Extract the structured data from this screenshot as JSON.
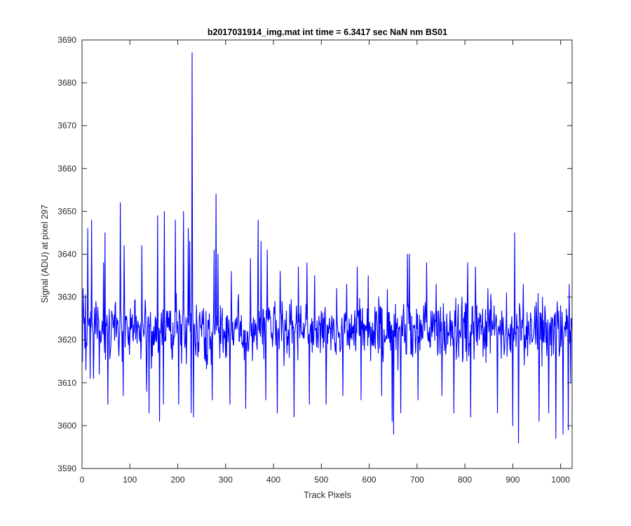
{
  "chart_data": {
    "type": "line",
    "title": "b2017031914_img.mat int time = 6.3417 sec  NaN nm BS01",
    "xlabel": "Track Pixels",
    "ylabel": "Signal (ADU) at pixel 297",
    "xlim": [
      0,
      1024
    ],
    "ylim": [
      3590,
      3690
    ],
    "xticks": [
      0,
      100,
      200,
      300,
      400,
      500,
      600,
      700,
      800,
      900,
      1000
    ],
    "yticks": [
      3590,
      3600,
      3610,
      3620,
      3630,
      3640,
      3650,
      3660,
      3670,
      3680,
      3690
    ],
    "grid": false,
    "legend": "none",
    "series_color": "#0000ff",
    "n_points": 1024,
    "baseline": 3622,
    "noise_amplitude": 7.5,
    "series": [
      {
        "x_start": 1,
        "x_step": 1,
        "anchor_points": [
          {
            "x": 2,
            "y": 3632
          },
          {
            "x": 8,
            "y": 3613
          },
          {
            "x": 12,
            "y": 3646
          },
          {
            "x": 17,
            "y": 3611
          },
          {
            "x": 20,
            "y": 3648
          },
          {
            "x": 24,
            "y": 3611
          },
          {
            "x": 36,
            "y": 3612
          },
          {
            "x": 45,
            "y": 3638
          },
          {
            "x": 48,
            "y": 3645
          },
          {
            "x": 54,
            "y": 3605
          },
          {
            "x": 80,
            "y": 3652
          },
          {
            "x": 86,
            "y": 3607
          },
          {
            "x": 88,
            "y": 3642
          },
          {
            "x": 125,
            "y": 3642
          },
          {
            "x": 135,
            "y": 3608
          },
          {
            "x": 140,
            "y": 3603
          },
          {
            "x": 158,
            "y": 3649
          },
          {
            "x": 162,
            "y": 3601
          },
          {
            "x": 170,
            "y": 3605
          },
          {
            "x": 172,
            "y": 3650
          },
          {
            "x": 195,
            "y": 3648
          },
          {
            "x": 202,
            "y": 3605
          },
          {
            "x": 212,
            "y": 3650
          },
          {
            "x": 222,
            "y": 3646
          },
          {
            "x": 225,
            "y": 3643
          },
          {
            "x": 228,
            "y": 3603
          },
          {
            "x": 230,
            "y": 3687
          },
          {
            "x": 233,
            "y": 3602
          },
          {
            "x": 272,
            "y": 3606
          },
          {
            "x": 276,
            "y": 3641
          },
          {
            "x": 280,
            "y": 3654
          },
          {
            "x": 284,
            "y": 3640
          },
          {
            "x": 309,
            "y": 3605
          },
          {
            "x": 312,
            "y": 3636
          },
          {
            "x": 342,
            "y": 3604
          },
          {
            "x": 352,
            "y": 3639
          },
          {
            "x": 368,
            "y": 3648
          },
          {
            "x": 374,
            "y": 3643
          },
          {
            "x": 384,
            "y": 3606
          },
          {
            "x": 387,
            "y": 3641
          },
          {
            "x": 408,
            "y": 3603
          },
          {
            "x": 414,
            "y": 3636
          },
          {
            "x": 422,
            "y": 3614
          },
          {
            "x": 443,
            "y": 3602
          },
          {
            "x": 452,
            "y": 3637
          },
          {
            "x": 470,
            "y": 3638
          },
          {
            "x": 475,
            "y": 3605
          },
          {
            "x": 486,
            "y": 3635
          },
          {
            "x": 510,
            "y": 3605
          },
          {
            "x": 532,
            "y": 3632
          },
          {
            "x": 545,
            "y": 3607
          },
          {
            "x": 553,
            "y": 3633
          },
          {
            "x": 575,
            "y": 3637
          },
          {
            "x": 583,
            "y": 3606
          },
          {
            "x": 598,
            "y": 3635
          },
          {
            "x": 626,
            "y": 3607
          },
          {
            "x": 648,
            "y": 3601
          },
          {
            "x": 651,
            "y": 3598
          },
          {
            "x": 666,
            "y": 3603
          },
          {
            "x": 680,
            "y": 3640
          },
          {
            "x": 684,
            "y": 3640
          },
          {
            "x": 702,
            "y": 3606
          },
          {
            "x": 720,
            "y": 3638
          },
          {
            "x": 740,
            "y": 3633
          },
          {
            "x": 752,
            "y": 3607
          },
          {
            "x": 777,
            "y": 3603
          },
          {
            "x": 794,
            "y": 3630
          },
          {
            "x": 806,
            "y": 3638
          },
          {
            "x": 812,
            "y": 3602
          },
          {
            "x": 822,
            "y": 3637
          },
          {
            "x": 848,
            "y": 3632
          },
          {
            "x": 868,
            "y": 3603
          },
          {
            "x": 887,
            "y": 3631
          },
          {
            "x": 900,
            "y": 3600
          },
          {
            "x": 904,
            "y": 3645
          },
          {
            "x": 912,
            "y": 3596
          },
          {
            "x": 922,
            "y": 3633
          },
          {
            "x": 955,
            "y": 3601
          },
          {
            "x": 970,
            "y": 3624
          },
          {
            "x": 975,
            "y": 3603
          },
          {
            "x": 990,
            "y": 3597
          },
          {
            "x": 1000,
            "y": 3628
          },
          {
            "x": 1005,
            "y": 3598
          },
          {
            "x": 1016,
            "y": 3599
          },
          {
            "x": 1018,
            "y": 3633
          },
          {
            "x": 1021,
            "y": 3610
          },
          {
            "x": 1024,
            "y": 3622
          }
        ]
      }
    ]
  }
}
